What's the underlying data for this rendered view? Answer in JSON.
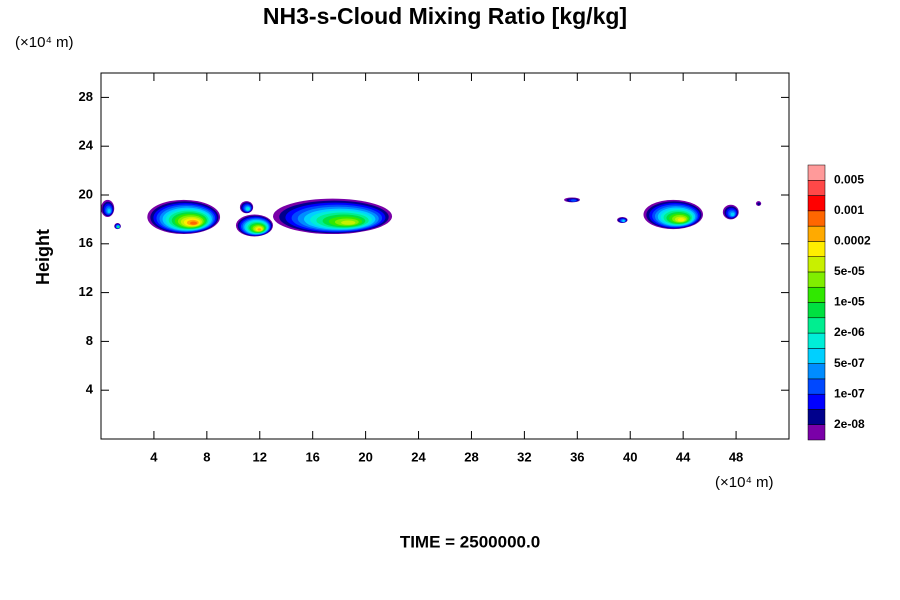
{
  "chart_data": {
    "type": "contour",
    "title": "NH3-s-Cloud Mixing Ratio [kg/kg]",
    "y_unit": "(×10⁴ m)",
    "x_unit": "(×10⁴ m)",
    "ylabel": "Height",
    "footer": "TIME = 2500000.0",
    "xlim": [
      0,
      52
    ],
    "xticks": [
      4,
      8,
      12,
      16,
      20,
      24,
      28,
      32,
      36,
      40,
      44,
      48
    ],
    "ylim": [
      0,
      30
    ],
    "yticks": [
      4,
      8,
      12,
      16,
      20,
      24,
      28
    ],
    "colorbar": {
      "colors": [
        "#7a00a8",
        "#00008c",
        "#0000ff",
        "#0048ff",
        "#008cff",
        "#00d0ff",
        "#00eed8",
        "#00ee90",
        "#00e040",
        "#30e800",
        "#80ee00",
        "#c8f000",
        "#ffee00",
        "#ffaa00",
        "#ff6600",
        "#ff0000",
        "#ff4848",
        "#ff9a9a"
      ],
      "ticks": [
        {
          "value": 2e-08,
          "label": "2e-08"
        },
        {
          "value": 1e-07,
          "label": "1e-07"
        },
        {
          "value": 5e-07,
          "label": "5e-07"
        },
        {
          "value": 2e-06,
          "label": "2e-06"
        },
        {
          "value": 1e-05,
          "label": "1e-05"
        },
        {
          "value": 5e-05,
          "label": "5e-05"
        },
        {
          "value": 0.0002,
          "label": "0.0002"
        },
        {
          "value": 0.001,
          "label": "0.001"
        },
        {
          "value": 0.005,
          "label": "0.005"
        }
      ]
    },
    "clouds": [
      {
        "xlim": [
          0,
          1.0
        ],
        "ylim": [
          18.2,
          19.6
        ],
        "peak": 5e-07
      },
      {
        "xlim": [
          1.0,
          1.5
        ],
        "ylim": [
          17.2,
          17.7
        ],
        "peak": 2e-06
      },
      {
        "xlim": [
          3.5,
          9
        ],
        "ylim": [
          16.8,
          19.6
        ],
        "peak": 0.0005
      },
      {
        "xlim": [
          10.2,
          13
        ],
        "ylim": [
          16.6,
          18.4
        ],
        "peak": 0.0002
      },
      {
        "xlim": [
          10.5,
          11.5
        ],
        "ylim": [
          18.5,
          19.5
        ],
        "peak": 1e-06
      },
      {
        "xlim": [
          13,
          22
        ],
        "ylim": [
          16.8,
          19.7
        ],
        "peak": 5e-05
      },
      {
        "xlim": [
          35,
          36.2
        ],
        "ylim": [
          19.4,
          19.8
        ],
        "peak": 1e-07
      },
      {
        "xlim": [
          39,
          39.8
        ],
        "ylim": [
          17.7,
          18.2
        ],
        "peak": 5e-07
      },
      {
        "xlim": [
          41,
          45.5
        ],
        "ylim": [
          17.2,
          19.6
        ],
        "peak": 0.0001
      },
      {
        "xlim": [
          47,
          48.2
        ],
        "ylim": [
          18,
          19.2
        ],
        "peak": 5e-07
      },
      {
        "xlim": [
          49.5,
          49.9
        ],
        "ylim": [
          19.1,
          19.5
        ],
        "peak": 2e-08
      }
    ]
  }
}
